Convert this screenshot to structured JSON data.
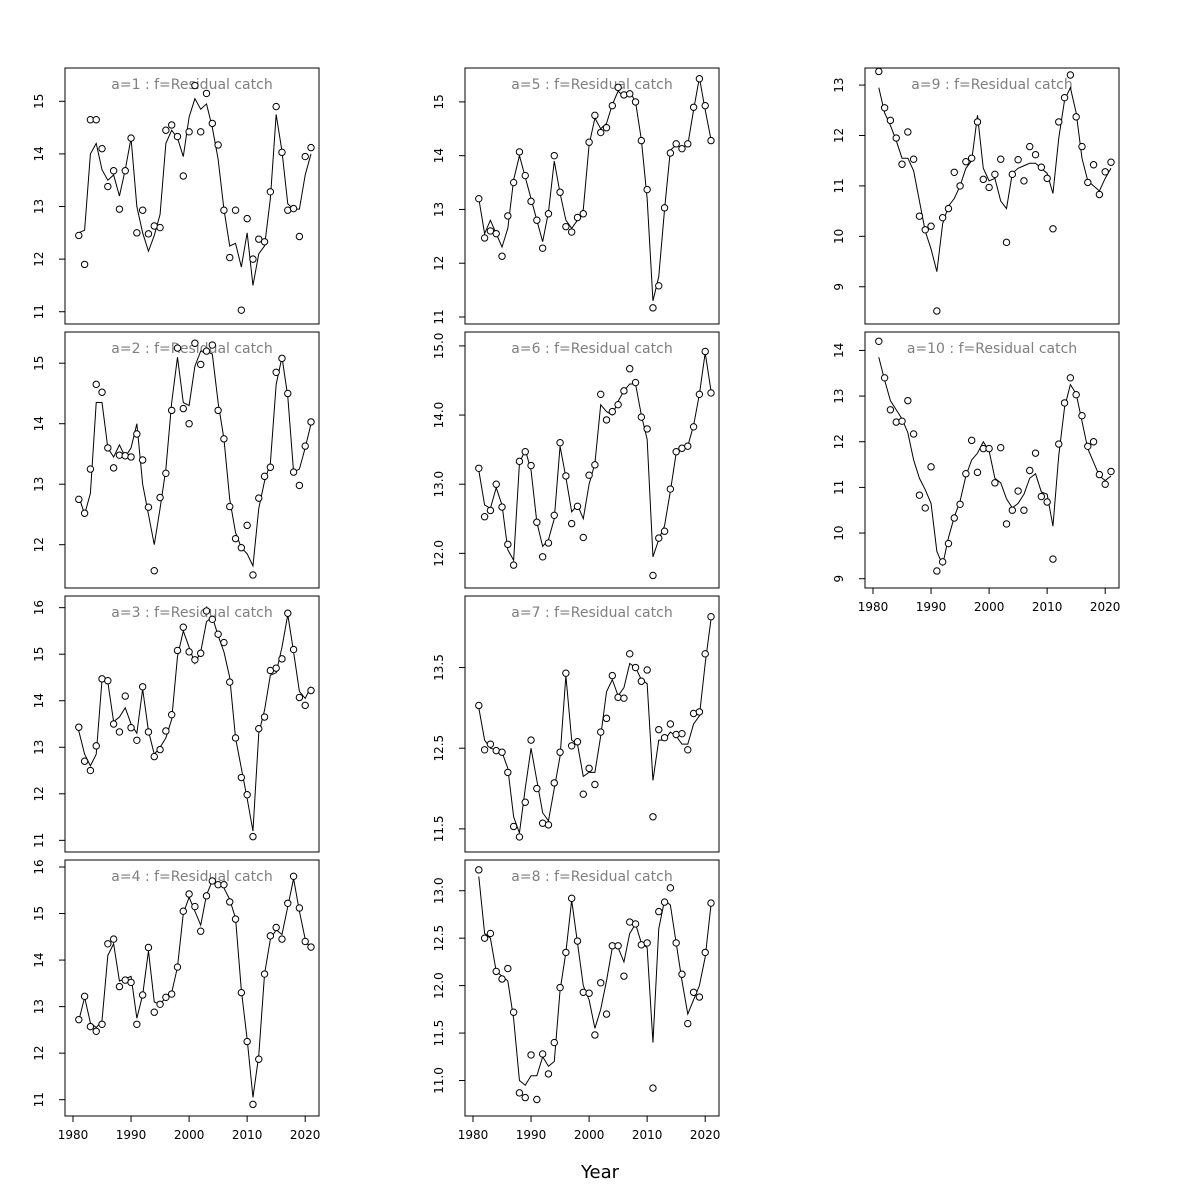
{
  "chart_data": {
    "type": "scatter",
    "xlabel": "Year",
    "x": [
      1981,
      1982,
      1983,
      1984,
      1985,
      1986,
      1987,
      1988,
      1989,
      1990,
      1991,
      1992,
      1993,
      1994,
      1995,
      1996,
      1997,
      1998,
      1999,
      2000,
      2001,
      2002,
      2003,
      2004,
      2005,
      2006,
      2007,
      2008,
      2009,
      2010,
      2011,
      2012,
      2013,
      2014,
      2015,
      2016,
      2017,
      2018,
      2019,
      2020,
      2021
    ],
    "xticks": [
      1980,
      1990,
      2000,
      2010,
      2020
    ],
    "xlim": [
      1980,
      2021
    ],
    "panels": [
      {
        "title": "a=1  :  f=Residual catch",
        "col": 0,
        "row": 0,
        "ylim": [
          10.9,
          15.5
        ],
        "yticks": [
          "11",
          "12",
          "13",
          "14",
          "15"
        ],
        "ytick_values": [
          11,
          12,
          13,
          14,
          15
        ],
        "show_x": false,
        "points": [
          12.45,
          11.9,
          14.65,
          14.65,
          14.1,
          13.38,
          13.68,
          12.95,
          13.68,
          14.3,
          12.5,
          12.93,
          12.48,
          12.63,
          12.6,
          14.45,
          14.55,
          14.33,
          13.58,
          14.42,
          15.3,
          14.42,
          15.15,
          14.58,
          14.17,
          12.93,
          12.03,
          12.93,
          11.03,
          12.77,
          12.0,
          12.38,
          12.33,
          13.28,
          14.9,
          14.03,
          12.93,
          12.96,
          12.43,
          13.95,
          14.12
        ],
        "fit": [
          12.5,
          12.55,
          14.0,
          14.2,
          13.7,
          13.5,
          13.6,
          13.2,
          13.7,
          14.3,
          13.0,
          12.5,
          12.15,
          12.45,
          12.85,
          14.2,
          14.45,
          14.3,
          13.95,
          14.7,
          15.05,
          14.85,
          14.95,
          14.5,
          13.9,
          12.95,
          12.25,
          12.3,
          11.85,
          12.5,
          11.5,
          12.1,
          12.25,
          13.15,
          14.75,
          14.05,
          13.05,
          12.95,
          12.95,
          13.6,
          14.0
        ]
      },
      {
        "title": "a=2  :  f=Residual catch",
        "col": 0,
        "row": 1,
        "ylim": [
          11.4,
          15.4
        ],
        "yticks": [
          "12",
          "13",
          "14",
          "15"
        ],
        "ytick_values": [
          12,
          13,
          14,
          15
        ],
        "show_x": false,
        "points": [
          12.75,
          12.52,
          13.25,
          14.65,
          14.52,
          13.6,
          13.27,
          13.48,
          13.47,
          13.45,
          13.83,
          13.4,
          12.62,
          11.57,
          12.78,
          13.18,
          14.22,
          15.25,
          14.25,
          14.0,
          15.33,
          14.98,
          15.2,
          15.3,
          14.22,
          13.75,
          12.63,
          12.1,
          11.95,
          12.32,
          11.5,
          12.77,
          13.13,
          13.28,
          14.85,
          15.08,
          14.5,
          13.2,
          12.98,
          13.63,
          14.03
        ],
        "fit": [
          12.8,
          12.5,
          12.85,
          14.35,
          14.35,
          13.6,
          13.45,
          13.65,
          13.45,
          13.6,
          14.0,
          13.0,
          12.5,
          12.0,
          12.6,
          13.25,
          14.35,
          15.1,
          14.35,
          14.3,
          14.95,
          15.2,
          15.2,
          15.15,
          14.35,
          13.75,
          12.75,
          12.2,
          11.95,
          11.85,
          11.65,
          12.6,
          13.05,
          13.35,
          14.65,
          15.1,
          14.45,
          13.2,
          13.25,
          13.6,
          14.0
        ]
      },
      {
        "title": "a=3  :  f=Residual catch",
        "col": 0,
        "row": 2,
        "ylim": [
          10.9,
          16.1
        ],
        "yticks": [
          "11",
          "12",
          "13",
          "14",
          "15",
          "16"
        ],
        "ytick_values": [
          11,
          12,
          13,
          14,
          15,
          16
        ],
        "show_x": false,
        "points": [
          13.43,
          12.7,
          12.5,
          13.03,
          14.47,
          14.43,
          13.5,
          13.33,
          14.1,
          13.42,
          13.15,
          14.3,
          13.33,
          12.8,
          12.95,
          13.35,
          13.7,
          15.08,
          15.58,
          15.05,
          14.88,
          15.02,
          15.93,
          15.75,
          15.43,
          15.25,
          14.4,
          13.2,
          12.35,
          11.98,
          11.08,
          13.4,
          13.65,
          14.65,
          14.7,
          14.9,
          15.88,
          15.1,
          14.07,
          13.9,
          14.22
        ],
        "fit": [
          13.35,
          12.85,
          12.6,
          12.85,
          14.45,
          14.4,
          13.55,
          13.65,
          13.85,
          13.5,
          13.3,
          14.25,
          13.35,
          12.85,
          13.0,
          13.2,
          13.6,
          14.95,
          15.5,
          15.15,
          14.8,
          15.05,
          15.7,
          15.8,
          15.4,
          15.05,
          14.5,
          13.2,
          12.55,
          11.9,
          11.2,
          13.3,
          13.8,
          14.55,
          14.6,
          15.15,
          15.85,
          15.05,
          14.2,
          14.05,
          14.3
        ]
      },
      {
        "title": "a=4  :  f=Residual catch",
        "col": 0,
        "row": 3,
        "ylim": [
          10.8,
          16.0
        ],
        "yticks": [
          "11",
          "12",
          "13",
          "14",
          "15",
          "16"
        ],
        "ytick_values": [
          11,
          12,
          13,
          14,
          15,
          16
        ],
        "show_x": true,
        "points": [
          12.72,
          13.22,
          12.57,
          12.47,
          12.62,
          14.35,
          14.45,
          13.43,
          13.57,
          13.52,
          12.62,
          13.25,
          14.27,
          12.88,
          13.05,
          13.2,
          13.27,
          13.85,
          15.05,
          15.42,
          15.15,
          14.62,
          15.38,
          15.7,
          15.62,
          15.62,
          15.25,
          14.88,
          13.3,
          12.25,
          10.9,
          11.87,
          13.7,
          14.52,
          14.7,
          14.45,
          15.22,
          15.8,
          15.12,
          14.4,
          14.28
        ],
        "fit": [
          12.7,
          13.2,
          12.65,
          12.55,
          12.7,
          14.1,
          14.35,
          13.55,
          13.6,
          13.65,
          12.75,
          13.25,
          14.2,
          13.1,
          13.05,
          13.2,
          13.3,
          13.85,
          15.0,
          15.35,
          15.05,
          14.75,
          15.4,
          15.7,
          15.65,
          15.55,
          15.3,
          14.9,
          13.35,
          12.3,
          11.05,
          11.95,
          13.7,
          14.45,
          14.65,
          14.55,
          15.15,
          15.75,
          15.05,
          14.45,
          14.2
        ]
      },
      {
        "title": "a=5  :  f=Residual catch",
        "col": 1,
        "row": 0,
        "ylim": [
          11.0,
          15.5
        ],
        "yticks": [
          "11",
          "12",
          "13",
          "14",
          "15"
        ],
        "ytick_values": [
          11,
          12,
          13,
          14,
          15
        ],
        "show_x": false,
        "points": [
          13.2,
          12.47,
          12.6,
          12.55,
          12.13,
          12.88,
          13.5,
          14.07,
          13.63,
          13.15,
          12.8,
          12.28,
          12.92,
          14.0,
          13.32,
          12.68,
          12.58,
          12.85,
          12.92,
          14.25,
          14.75,
          14.43,
          14.52,
          14.93,
          15.27,
          15.13,
          15.15,
          15.0,
          14.28,
          13.37,
          11.17,
          11.58,
          13.03,
          14.05,
          14.22,
          14.13,
          14.22,
          14.9,
          15.43,
          14.93,
          14.28
        ],
        "fit": [
          13.2,
          12.55,
          12.8,
          12.55,
          12.3,
          12.65,
          13.55,
          14.0,
          13.6,
          13.2,
          12.8,
          12.4,
          12.95,
          13.9,
          13.3,
          12.8,
          12.65,
          12.8,
          13.0,
          14.2,
          14.7,
          14.5,
          14.6,
          14.95,
          15.2,
          15.1,
          15.2,
          15.0,
          14.3,
          13.2,
          11.3,
          11.75,
          13.0,
          14.1,
          14.2,
          14.15,
          14.2,
          14.85,
          15.45,
          14.85,
          14.3
        ]
      },
      {
        "title": "a=6  :  f=Residual catch",
        "col": 1,
        "row": 1,
        "ylim": [
          11.6,
          15.1
        ],
        "yticks": [
          "12.0",
          "13.0",
          "14.0",
          "15.0"
        ],
        "ytick_values": [
          12,
          13,
          14,
          15
        ],
        "show_x": false,
        "points": [
          13.23,
          12.53,
          12.62,
          13.0,
          12.67,
          12.13,
          11.83,
          13.33,
          13.47,
          13.27,
          12.45,
          11.95,
          12.15,
          12.55,
          13.6,
          13.12,
          12.43,
          12.68,
          12.23,
          13.13,
          13.28,
          14.3,
          13.93,
          14.05,
          14.15,
          14.35,
          14.67,
          14.47,
          13.97,
          13.8,
          11.68,
          12.22,
          12.32,
          12.93,
          13.47,
          13.52,
          13.55,
          13.83,
          14.3,
          14.92,
          14.32
        ],
        "fit": [
          13.2,
          12.7,
          12.65,
          12.95,
          12.7,
          12.05,
          11.9,
          13.3,
          13.5,
          13.2,
          12.45,
          12.1,
          12.2,
          12.5,
          13.55,
          13.1,
          12.6,
          12.7,
          12.5,
          13.0,
          13.3,
          14.15,
          14.05,
          14.0,
          14.2,
          14.35,
          14.45,
          14.45,
          14.0,
          13.65,
          11.95,
          12.2,
          12.4,
          12.9,
          13.45,
          13.5,
          13.55,
          13.85,
          14.3,
          14.9,
          14.35
        ]
      },
      {
        "title": "a=7  :  f=Residual catch",
        "col": 1,
        "row": 2,
        "ylim": [
          11.3,
          14.3
        ],
        "yticks": [
          "11.5",
          "12.5",
          "13.5"
        ],
        "ytick_values": [
          11.5,
          12.5,
          13.5
        ],
        "show_x": false,
        "points": [
          13.03,
          12.48,
          12.55,
          12.47,
          12.45,
          12.2,
          11.53,
          11.4,
          11.83,
          12.6,
          12.0,
          11.57,
          11.55,
          12.07,
          12.45,
          13.43,
          12.53,
          12.58,
          11.93,
          12.25,
          12.05,
          12.7,
          12.87,
          13.4,
          13.13,
          13.12,
          13.67,
          13.5,
          13.33,
          13.47,
          11.65,
          12.73,
          12.63,
          12.8,
          12.67,
          12.68,
          12.48,
          12.93,
          12.95,
          13.67,
          14.13
        ],
        "fit": [
          13.0,
          12.6,
          12.5,
          12.48,
          12.45,
          12.25,
          11.65,
          11.45,
          12.0,
          12.5,
          12.1,
          11.7,
          11.6,
          12.0,
          12.4,
          13.4,
          12.6,
          12.55,
          12.15,
          12.2,
          12.2,
          12.65,
          13.2,
          13.35,
          13.15,
          13.25,
          13.55,
          13.5,
          13.35,
          13.3,
          12.1,
          12.6,
          12.6,
          12.7,
          12.65,
          12.55,
          12.55,
          12.8,
          12.9,
          13.55,
          14.1
        ]
      },
      {
        "title": "a=8  :  f=Residual catch",
        "col": 1,
        "row": 3,
        "ylim": [
          10.7,
          13.25
        ],
        "yticks": [
          "11.0",
          "11.5",
          "12.0",
          "12.5",
          "13.0"
        ],
        "ytick_values": [
          11,
          11.5,
          12,
          12.5,
          13
        ],
        "show_x": true,
        "points": [
          13.22,
          12.5,
          12.55,
          12.15,
          12.07,
          12.18,
          11.72,
          10.87,
          10.82,
          11.27,
          10.8,
          11.28,
          11.07,
          11.4,
          11.98,
          12.35,
          12.92,
          12.47,
          11.93,
          11.92,
          11.48,
          12.03,
          11.7,
          12.42,
          12.42,
          12.1,
          12.67,
          12.65,
          12.43,
          12.45,
          10.92,
          12.78,
          12.88,
          13.03,
          12.45,
          12.12,
          11.6,
          11.93,
          11.88,
          12.35,
          12.87
        ],
        "fit": [
          13.15,
          12.55,
          12.5,
          12.15,
          12.1,
          12.05,
          11.65,
          11.0,
          10.95,
          11.05,
          11.05,
          11.25,
          11.15,
          11.2,
          11.95,
          12.35,
          12.9,
          12.45,
          12.0,
          11.85,
          11.55,
          11.75,
          12.05,
          12.4,
          12.4,
          12.25,
          12.55,
          12.65,
          12.45,
          12.4,
          11.4,
          12.6,
          12.9,
          12.85,
          12.45,
          12.05,
          11.7,
          11.85,
          12.0,
          12.3,
          12.85
        ]
      },
      {
        "title": "a=9  :  f=Residual catch",
        "col": 2,
        "row": 0,
        "ylim": [
          8.4,
          13.2
        ],
        "yticks": [
          "9",
          "10",
          "11",
          "12",
          "13"
        ],
        "ytick_values": [
          9,
          10,
          11,
          12,
          13
        ],
        "show_x": false,
        "points": [
          13.27,
          12.55,
          12.3,
          11.95,
          11.43,
          12.07,
          11.53,
          10.4,
          10.13,
          10.2,
          8.52,
          10.37,
          10.55,
          11.27,
          11.0,
          11.48,
          11.55,
          12.27,
          11.13,
          10.97,
          11.23,
          11.53,
          9.88,
          11.23,
          11.52,
          11.1,
          11.78,
          11.62,
          11.37,
          11.15,
          10.15,
          12.27,
          12.75,
          13.2,
          12.37,
          11.78,
          11.07,
          11.42,
          10.83,
          11.28,
          11.47
        ],
        "fit": [
          12.95,
          12.45,
          12.2,
          11.9,
          11.55,
          11.55,
          11.3,
          10.7,
          10.1,
          9.75,
          9.3,
          10.25,
          10.6,
          10.75,
          11.0,
          11.35,
          11.5,
          12.4,
          11.35,
          11.1,
          11.15,
          10.7,
          10.55,
          11.25,
          11.35,
          11.4,
          11.45,
          11.45,
          11.35,
          11.25,
          10.85,
          11.95,
          12.7,
          12.95,
          12.45,
          11.55,
          11.1,
          11.0,
          10.9,
          11.15,
          11.35
        ]
      },
      {
        "title": "a=10  :  f=Residual catch",
        "col": 2,
        "row": 1,
        "ylim": [
          8.95,
          14.25
        ],
        "yticks": [
          "9",
          "10",
          "11",
          "12",
          "13",
          "14"
        ],
        "ytick_values": [
          9,
          10,
          11,
          12,
          13,
          14
        ],
        "show_x": true,
        "points": [
          14.2,
          13.4,
          12.7,
          12.43,
          12.45,
          12.9,
          12.17,
          10.83,
          10.55,
          11.45,
          9.17,
          9.37,
          9.77,
          10.33,
          10.63,
          11.3,
          12.03,
          11.33,
          11.85,
          11.85,
          11.1,
          11.87,
          10.2,
          10.5,
          10.92,
          10.5,
          11.37,
          11.75,
          10.8,
          10.68,
          9.43,
          11.95,
          12.85,
          13.4,
          13.03,
          12.57,
          11.9,
          12.0,
          11.28,
          11.07,
          11.35
        ],
        "fit": [
          13.85,
          13.35,
          12.9,
          12.7,
          12.5,
          12.2,
          11.6,
          11.2,
          10.95,
          10.65,
          9.6,
          9.3,
          9.9,
          10.35,
          10.7,
          11.25,
          11.6,
          11.75,
          12.0,
          11.8,
          11.2,
          11.1,
          10.75,
          10.55,
          10.65,
          10.85,
          11.2,
          11.3,
          10.9,
          10.85,
          10.15,
          11.7,
          12.75,
          13.25,
          13.05,
          12.45,
          11.85,
          11.55,
          11.25,
          11.15,
          11.25
        ]
      }
    ]
  }
}
